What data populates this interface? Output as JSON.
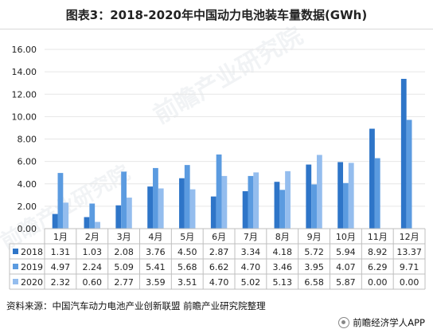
{
  "title": "图表3：2018-2020年中国动力电池装车量数据(GWh)",
  "source": "资料来源：中国汽车动力电池产业创新联盟 前瞻产业研究院整理",
  "brand": "前瞻经济学人APP",
  "watermark": "前瞻产业研究院",
  "colors": {
    "2018": "#2e75c8",
    "2019": "#5b9be0",
    "2020": "#94bdee",
    "grid": "#e6e6e6",
    "text": "#222222"
  },
  "chart_data": {
    "type": "bar",
    "categories": [
      "1月",
      "2月",
      "3月",
      "4月",
      "5月",
      "6月",
      "7月",
      "8月",
      "9月",
      "10月",
      "11月",
      "12月"
    ],
    "series": [
      {
        "name": "2018",
        "values": [
          1.31,
          1.03,
          2.08,
          3.76,
          4.5,
          2.87,
          3.34,
          4.18,
          5.72,
          5.94,
          8.92,
          13.37
        ]
      },
      {
        "name": "2019",
        "values": [
          4.97,
          2.24,
          5.09,
          5.41,
          5.68,
          6.62,
          4.7,
          3.46,
          3.95,
          4.07,
          6.29,
          9.71
        ]
      },
      {
        "name": "2020",
        "values": [
          2.32,
          0.6,
          2.77,
          3.59,
          3.51,
          4.7,
          5.02,
          5.13,
          6.58,
          5.87,
          0.0,
          0.0
        ]
      }
    ],
    "ylim": [
      0,
      16
    ],
    "yticks": [
      "0.00",
      "2.00",
      "4.00",
      "6.00",
      "8.00",
      "10.00",
      "12.00",
      "14.00",
      "16.00"
    ],
    "grid": true,
    "legend": "data-table-below"
  }
}
